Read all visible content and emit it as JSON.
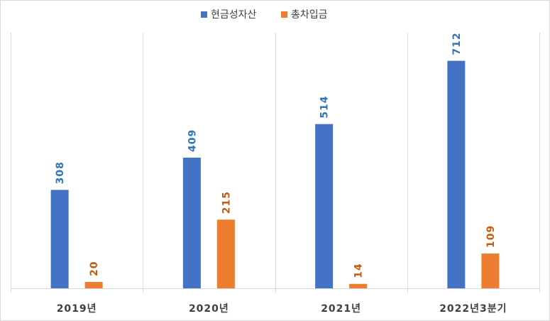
{
  "chart_data": {
    "type": "bar",
    "title": "",
    "xlabel": "",
    "ylabel": "",
    "categories": [
      "2019년",
      "2020년",
      "2021년",
      "2022년3분기"
    ],
    "series": [
      {
        "name": "현금성자산",
        "values": [
          308,
          409,
          514,
          712
        ],
        "color": "#4472C4",
        "label_color": "#2E75B6"
      },
      {
        "name": "총차입금",
        "values": [
          20,
          215,
          14,
          109
        ],
        "color": "#ED7D31",
        "label_color": "#C55A11"
      }
    ],
    "ylim": [
      0,
      800
    ],
    "grid": "vertical category separators",
    "legend": "top-center",
    "data_labels": "rotated above bars"
  }
}
